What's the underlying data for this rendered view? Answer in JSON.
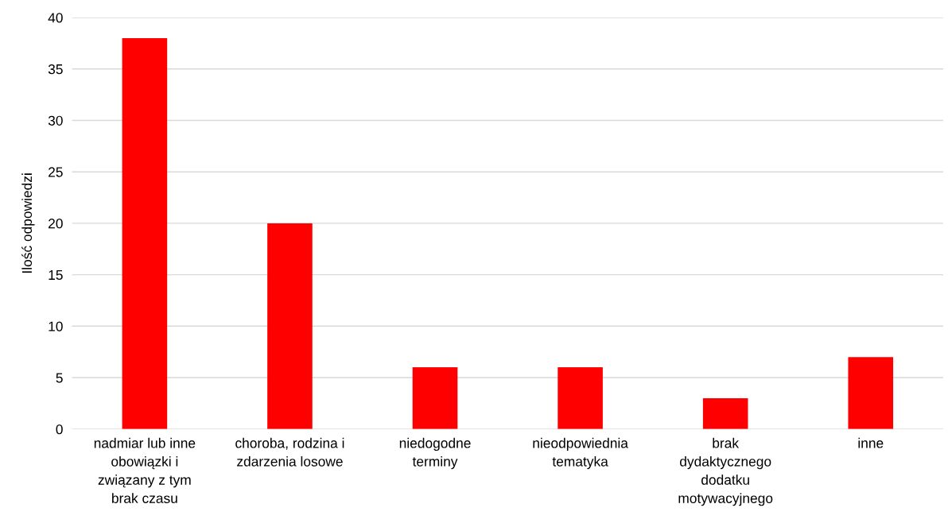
{
  "chart_data": {
    "type": "bar",
    "ylabel": "Ilość odpowiedzi",
    "categories": [
      "nadmiar lub inne\nobowiązki i\nzwiązany z tym\nbrak czasu",
      "choroba, rodzina i\nzdarzenia losowe",
      "niedogodne\nterminy",
      "nieodpowiednia\ntematyka",
      "brak\ndydaktycznego\ndodatku\nmotywacyjnego",
      "inne"
    ],
    "values": [
      38,
      20,
      6,
      6,
      3,
      7
    ],
    "color": "#ff0000",
    "ylim": [
      0,
      40
    ],
    "yticks": [
      0,
      5,
      10,
      15,
      20,
      25,
      30,
      35,
      40
    ],
    "grid": "y"
  }
}
